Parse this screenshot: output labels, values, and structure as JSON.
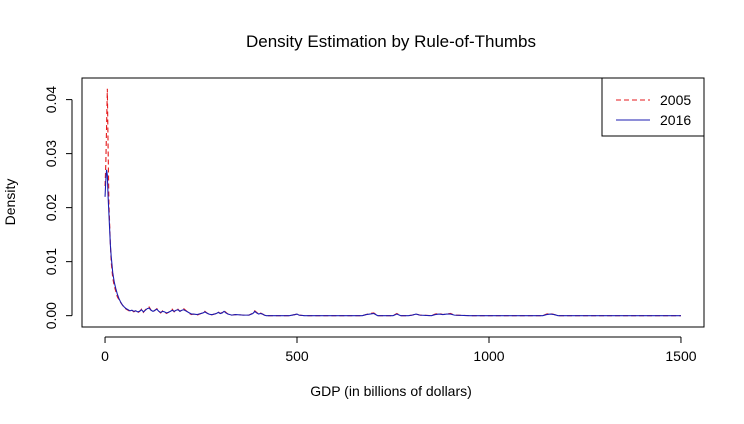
{
  "chart_data": {
    "type": "line",
    "title": "Density Estimation by Rule-of-Thumbs",
    "xlabel": "GDP (in billions of dollars)",
    "ylabel": "Density",
    "xlim": [
      -60,
      1560
    ],
    "ylim": [
      -0.0021,
      0.044
    ],
    "xticks": [
      0,
      500,
      1000,
      1500
    ],
    "yticks": [
      0.0,
      0.01,
      0.02,
      0.03,
      0.04
    ],
    "ytick_labels": [
      "0.00",
      "0.01",
      "0.02",
      "0.03",
      "0.04"
    ],
    "grid": false,
    "legend": "top-right",
    "series": [
      {
        "name": "2005",
        "color": "#e41a1c",
        "dash": "dashed",
        "x": [
          0,
          2,
          4,
          6,
          8,
          10,
          12,
          14,
          16,
          18,
          20,
          24,
          28,
          32,
          36,
          40,
          45,
          50,
          55,
          60,
          65,
          70,
          75,
          80,
          85,
          90,
          95,
          100,
          105,
          110,
          115,
          120,
          125,
          130,
          135,
          140,
          145,
          150,
          155,
          160,
          165,
          170,
          175,
          180,
          185,
          190,
          195,
          200,
          205,
          210,
          215,
          220,
          225,
          230,
          240,
          250,
          255,
          260,
          265,
          270,
          275,
          280,
          290,
          295,
          300,
          305,
          310,
          315,
          320,
          330,
          340,
          360,
          375,
          385,
          390,
          395,
          400,
          405,
          410,
          415,
          420,
          440,
          480,
          495,
          500,
          505,
          520,
          600,
          670,
          680,
          690,
          700,
          710,
          750,
          760,
          770,
          790,
          800,
          810,
          820,
          850,
          860,
          870,
          880,
          890,
          900,
          910,
          950,
          1100,
          1140,
          1150,
          1160,
          1170,
          1180,
          1250,
          1400,
          1500
        ],
        "y": [
          0.024,
          0.028,
          0.035,
          0.042,
          0.031,
          0.021,
          0.017,
          0.013,
          0.01,
          0.0085,
          0.007,
          0.0055,
          0.0045,
          0.0035,
          0.003,
          0.0025,
          0.002,
          0.0015,
          0.0012,
          0.001,
          0.0008,
          0.001,
          0.0007,
          0.0009,
          0.0005,
          0.0008,
          0.0012,
          0.0006,
          0.0011,
          0.0014,
          0.0016,
          0.001,
          0.0007,
          0.001,
          0.0013,
          0.0008,
          0.0005,
          0.0009,
          0.0007,
          0.0004,
          0.0006,
          0.0009,
          0.0012,
          0.0007,
          0.001,
          0.0012,
          0.0008,
          0.0011,
          0.0013,
          0.001,
          0.0007,
          0.0004,
          0.0002,
          0.0003,
          0.0001,
          0.0004,
          0.0006,
          0.0008,
          0.0005,
          0.0003,
          0.0001,
          0.0002,
          0.0004,
          0.0007,
          0.0004,
          0.0006,
          0.0009,
          0.0006,
          0.0003,
          0.0001,
          0.0002,
          0.0001,
          0.0001,
          0.0005,
          0.0009,
          0.0006,
          0.0003,
          0.0005,
          0.0003,
          0.0001,
          0.0,
          0.0,
          0.0,
          0.0002,
          0.0003,
          0.0001,
          0.0,
          0.0,
          0.0,
          0.0002,
          0.0004,
          0.0005,
          0.0,
          0.0,
          0.0004,
          0.0,
          0.0,
          0.0001,
          0.0003,
          0.0001,
          0.0,
          0.0003,
          0.0004,
          0.0002,
          0.0003,
          0.0004,
          0.0001,
          0.0,
          0.0,
          0.0,
          0.0003,
          0.0004,
          0.0002,
          0.0,
          0.0,
          0.0,
          0.0
        ]
      },
      {
        "name": "2016",
        "color": "#1c1cb0",
        "dash": "solid",
        "x": [
          0,
          2,
          4,
          6,
          8,
          10,
          12,
          14,
          16,
          18,
          20,
          24,
          28,
          32,
          36,
          40,
          45,
          50,
          55,
          60,
          65,
          70,
          75,
          80,
          85,
          90,
          95,
          100,
          105,
          110,
          115,
          120,
          125,
          130,
          135,
          140,
          145,
          150,
          155,
          160,
          165,
          170,
          175,
          180,
          185,
          190,
          195,
          200,
          205,
          210,
          215,
          220,
          225,
          230,
          240,
          250,
          255,
          260,
          265,
          270,
          275,
          280,
          290,
          295,
          300,
          305,
          310,
          315,
          320,
          330,
          340,
          360,
          375,
          385,
          390,
          395,
          400,
          405,
          410,
          415,
          420,
          440,
          480,
          495,
          500,
          505,
          520,
          600,
          670,
          680,
          690,
          700,
          710,
          750,
          760,
          770,
          790,
          800,
          810,
          820,
          850,
          860,
          870,
          880,
          890,
          900,
          910,
          950,
          1100,
          1140,
          1150,
          1160,
          1170,
          1180,
          1250,
          1400,
          1500
        ],
        "y": [
          0.022,
          0.025,
          0.027,
          0.026,
          0.022,
          0.019,
          0.016,
          0.013,
          0.011,
          0.0095,
          0.008,
          0.0062,
          0.005,
          0.004,
          0.0032,
          0.0026,
          0.002,
          0.0016,
          0.0013,
          0.0011,
          0.0009,
          0.001,
          0.0008,
          0.0009,
          0.0007,
          0.0008,
          0.0011,
          0.0007,
          0.001,
          0.0013,
          0.0014,
          0.001,
          0.0008,
          0.001,
          0.0012,
          0.0008,
          0.0006,
          0.0008,
          0.0007,
          0.0005,
          0.0006,
          0.0008,
          0.001,
          0.0008,
          0.001,
          0.0011,
          0.0008,
          0.001,
          0.0011,
          0.0009,
          0.0007,
          0.0005,
          0.0003,
          0.0003,
          0.0002,
          0.0004,
          0.0005,
          0.0007,
          0.0005,
          0.0003,
          0.0002,
          0.0002,
          0.0004,
          0.0006,
          0.0004,
          0.0005,
          0.0008,
          0.0005,
          0.0003,
          0.0001,
          0.0002,
          0.0001,
          0.0001,
          0.0004,
          0.0008,
          0.0005,
          0.0003,
          0.0004,
          0.0003,
          0.0001,
          0.0,
          0.0,
          0.0,
          0.0002,
          0.0003,
          0.0001,
          0.0,
          0.0,
          0.0,
          0.0002,
          0.0003,
          0.0004,
          0.0,
          0.0,
          0.0003,
          0.0,
          0.0,
          0.0001,
          0.0003,
          0.0001,
          0.0,
          0.0002,
          0.0003,
          0.0002,
          0.0003,
          0.0003,
          0.0001,
          0.0,
          0.0,
          0.0,
          0.0002,
          0.0003,
          0.0002,
          0.0,
          0.0,
          0.0,
          0.0
        ]
      }
    ]
  }
}
